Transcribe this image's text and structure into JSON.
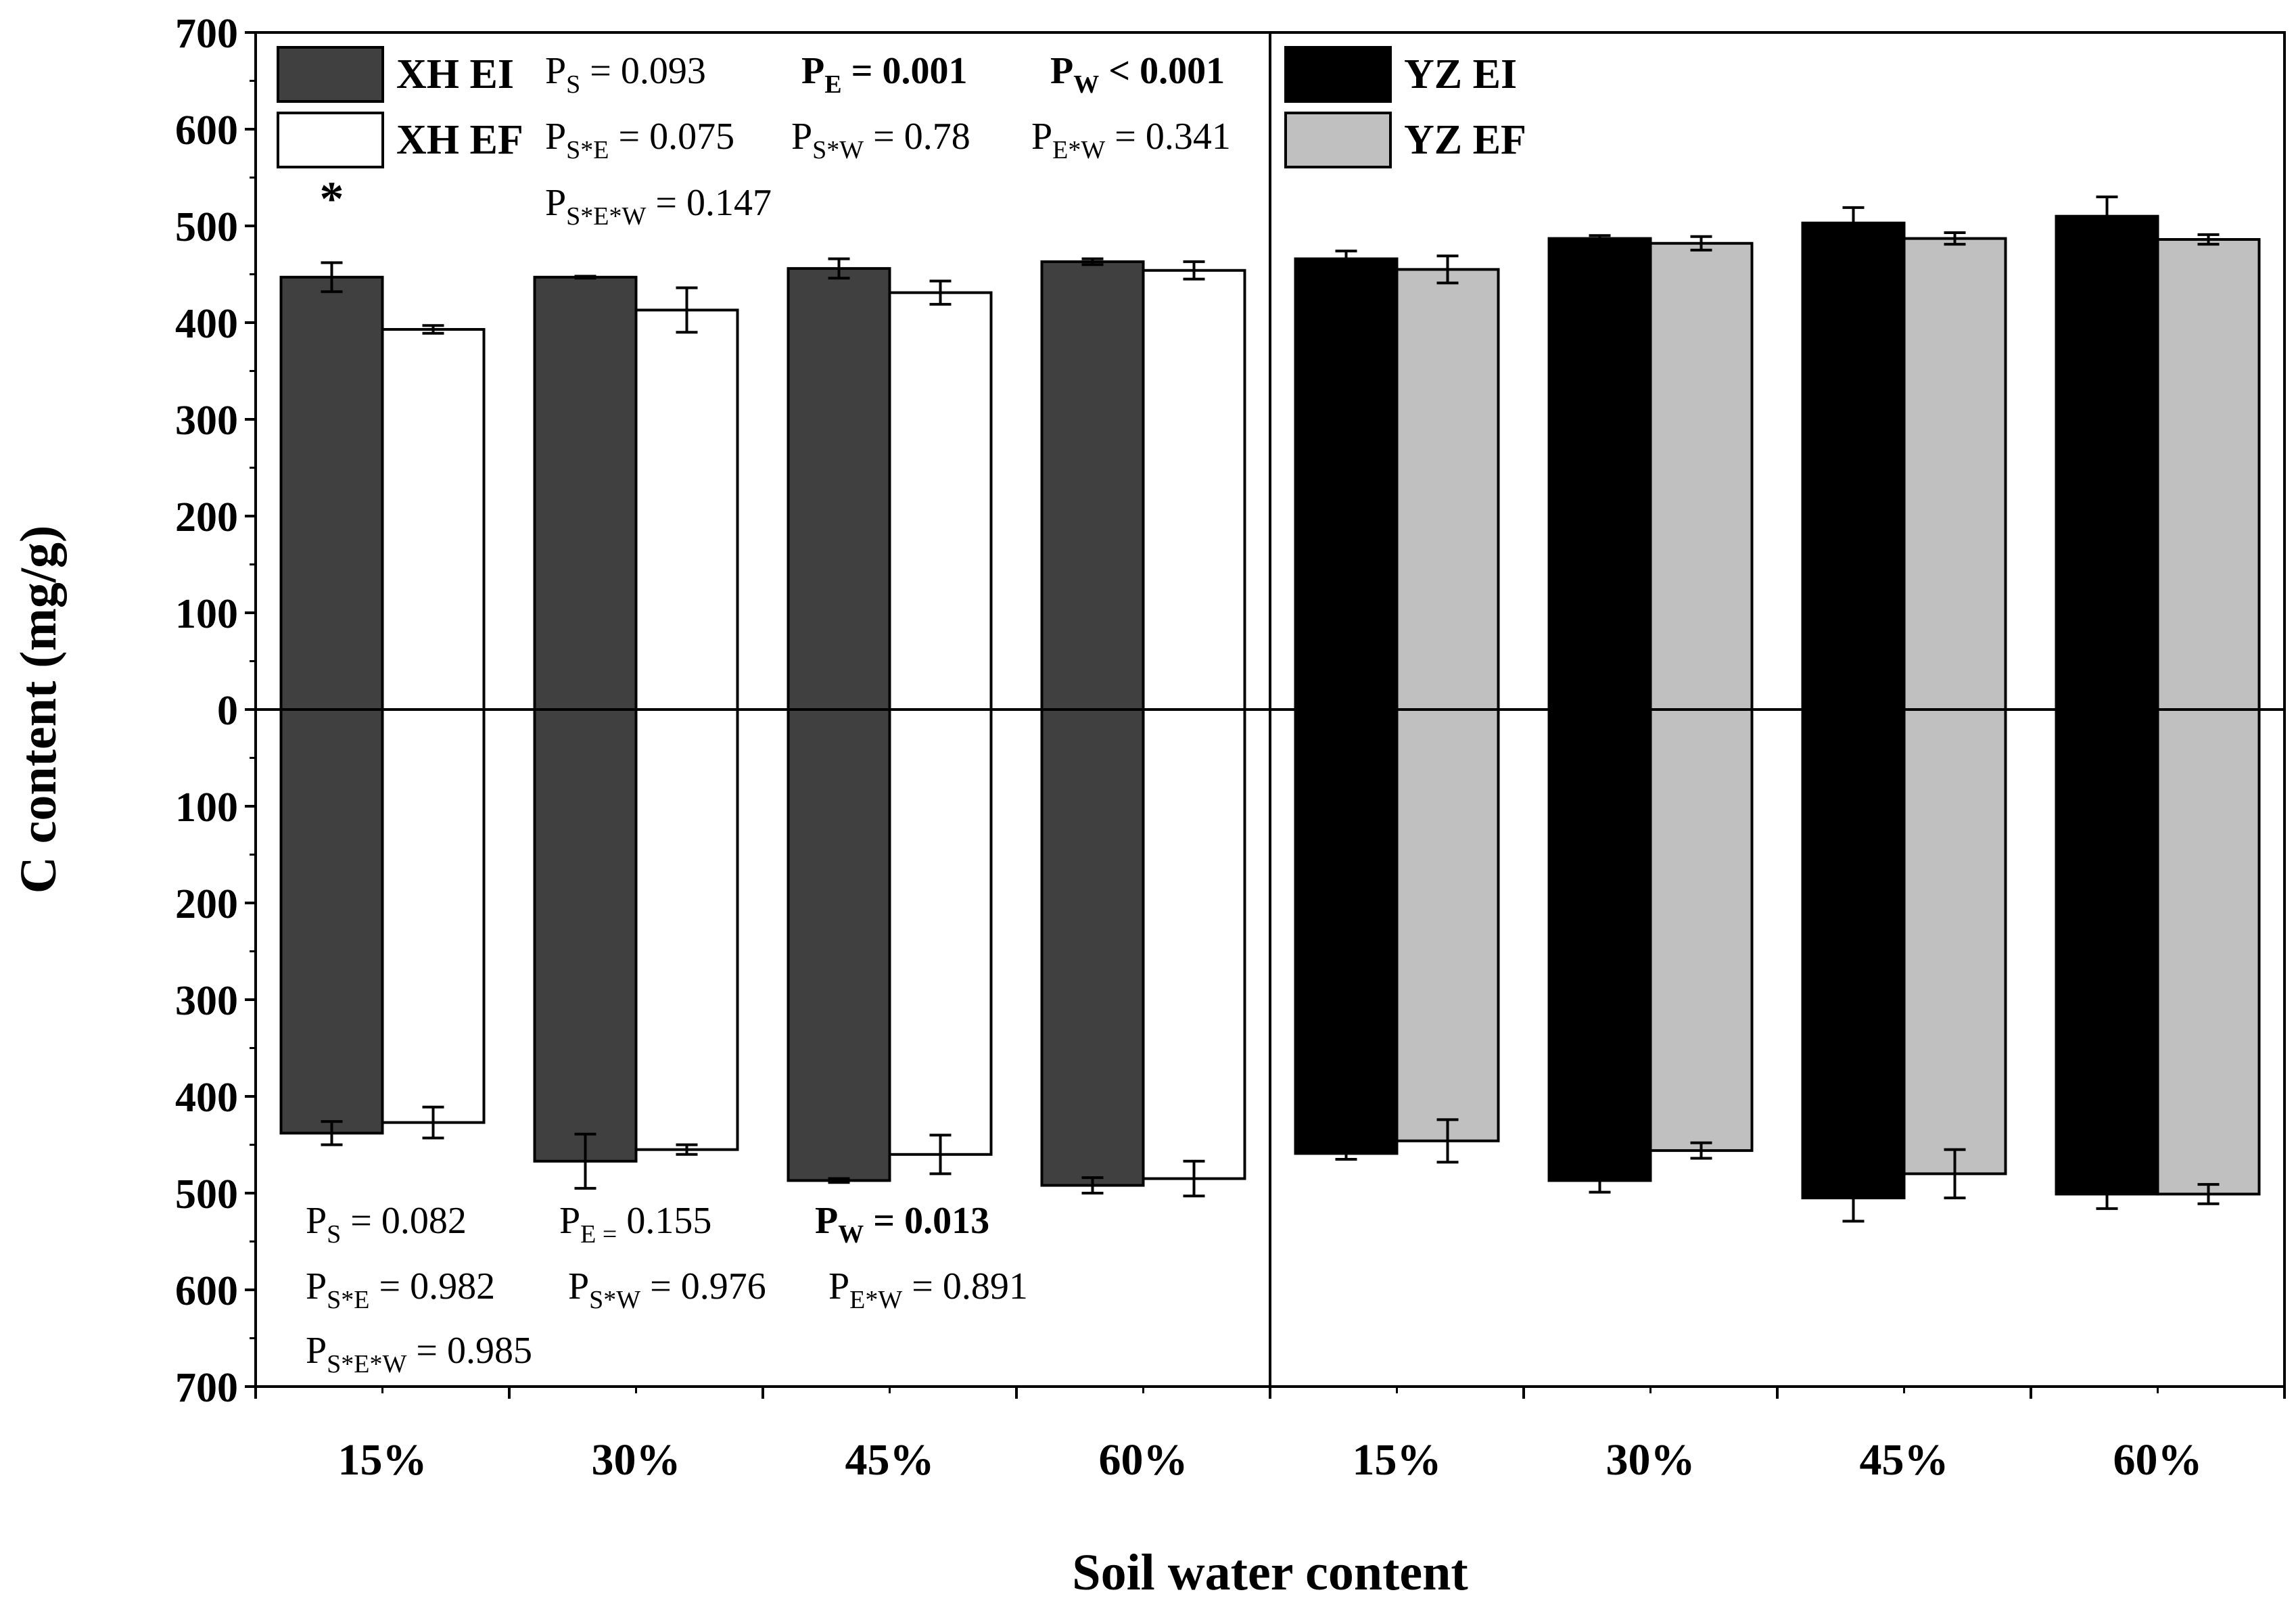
{
  "chart_data": {
    "type": "bar",
    "xlabel": "Soil water content",
    "ylabel": "C content (mg/g)",
    "ylim": [
      -700,
      700
    ],
    "yticks": [
      "700",
      "600",
      "500",
      "400",
      "300",
      "200",
      "100",
      "0",
      "100",
      "200",
      "300",
      "400",
      "500",
      "600",
      "700"
    ],
    "categories": [
      "15%",
      "30%",
      "45%",
      "60%",
      "15%",
      "30%",
      "45%",
      "60%"
    ],
    "star": "*",
    "series": [
      {
        "name": "XH EI",
        "color": "#404040",
        "panel": "left",
        "top": [
          447,
          447,
          456,
          463
        ],
        "top_err": [
          15,
          1,
          10,
          3
        ],
        "bottom": [
          -438,
          -467,
          -487,
          -492
        ],
        "bottom_err": [
          12,
          28,
          2,
          8
        ]
      },
      {
        "name": "XH EF",
        "color": "#ffffff",
        "panel": "left",
        "top": [
          393,
          413,
          431,
          454
        ],
        "top_err": [
          4,
          23,
          12,
          9
        ],
        "bottom": [
          -427,
          -455,
          -460,
          -485
        ],
        "bottom_err": [
          16,
          5,
          20,
          18
        ]
      },
      {
        "name": "YZ EI",
        "color": "#000000",
        "panel": "right",
        "top": [
          466,
          487,
          503,
          510
        ],
        "top_err": [
          8,
          3,
          16,
          20
        ],
        "bottom": [
          -459,
          -487,
          -505,
          -501
        ],
        "bottom_err": [
          6,
          12,
          24,
          15
        ]
      },
      {
        "name": "YZ EF",
        "color": "#c0c0c0",
        "panel": "right",
        "top": [
          455,
          482,
          487,
          486
        ],
        "top_err": [
          14,
          7,
          6,
          5
        ],
        "bottom": [
          -446,
          -456,
          -480,
          -501
        ],
        "bottom_err": [
          22,
          8,
          25,
          10
        ]
      }
    ],
    "legend": {
      "left": [
        {
          "label": "XH EI",
          "color": "#404040"
        },
        {
          "label": "XH EF",
          "color": "#ffffff"
        }
      ],
      "right": [
        {
          "label": "YZ EI",
          "color": "#000000"
        },
        {
          "label": "YZ EF",
          "color": "#c0c0c0"
        }
      ]
    },
    "annotations": {
      "top": {
        "ps": {
          "main": "P",
          "sub": "S",
          "rest": " = 0.093"
        },
        "pe": {
          "main": "P",
          "sub": "E",
          "rest": " = 0.001"
        },
        "pw": {
          "main": "P",
          "sub": "W",
          "rest": " < 0.001"
        },
        "pse": {
          "main": "P",
          "sub": "S*E",
          "rest": " = 0.075"
        },
        "psw": {
          "main": "P",
          "sub": "S*W",
          "rest": " = 0.78"
        },
        "pew": {
          "main": "P",
          "sub": "E*W",
          "rest": " = 0.341"
        },
        "psew": {
          "main": "P",
          "sub": "S*E*W",
          "rest": " = 0.147"
        }
      },
      "bottom": {
        "ps": {
          "main": "P",
          "sub": "S",
          "rest": " = 0.082"
        },
        "pe": {
          "main": "P",
          "sub": "E =",
          "rest": " 0.155"
        },
        "pw": {
          "main": "P",
          "sub": "W",
          "rest": " = 0.013"
        },
        "pse": {
          "main": "P",
          "sub": "S*E",
          "rest": " = 0.982"
        },
        "psw": {
          "main": "P",
          "sub": "S*W",
          "rest": " = 0.976"
        },
        "pew": {
          "main": "P",
          "sub": "E*W",
          "rest": " = 0.891"
        },
        "psew": {
          "main": "P",
          "sub": "S*E*W",
          "rest": " = 0.985"
        }
      }
    }
  }
}
